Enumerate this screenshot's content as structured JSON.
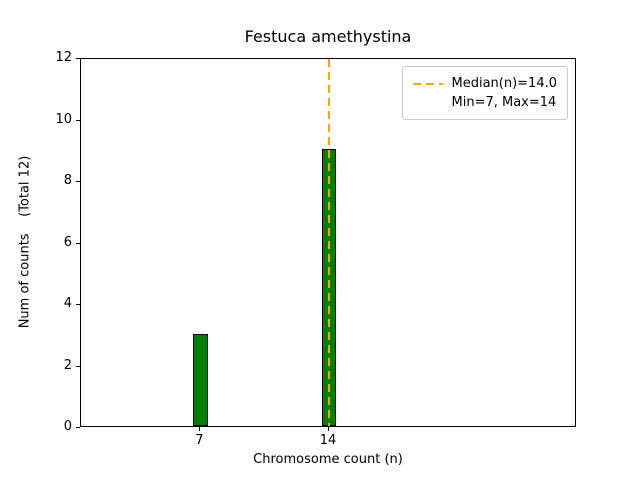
{
  "chart_data": {
    "type": "bar",
    "title": "Festuca amethystina",
    "xlabel": "Chromosome count (n)",
    "ylabel": "Num of counts    (Total 12)",
    "x": [
      7,
      14
    ],
    "values": [
      3,
      9
    ],
    "total": 12,
    "bar_color": "#008000",
    "bar_edge_color": "#000000",
    "bar_width_units": 0.8,
    "xlim": [
      0.5,
      27.5
    ],
    "ylim": [
      0,
      12
    ],
    "xticks": [
      "7",
      "14"
    ],
    "xtick_values": [
      7,
      14
    ],
    "yticks": [
      "0",
      "2",
      "4",
      "6",
      "8",
      "10",
      "12"
    ],
    "ytick_values": [
      0,
      2,
      4,
      6,
      8,
      10,
      12
    ],
    "median": 14.0,
    "median_line_color": "#FFA500",
    "grid": false,
    "legend_position": "upper right",
    "legend": {
      "entries": [
        "Median(n)=14.0",
        "Min=7, Max=14"
      ]
    }
  }
}
